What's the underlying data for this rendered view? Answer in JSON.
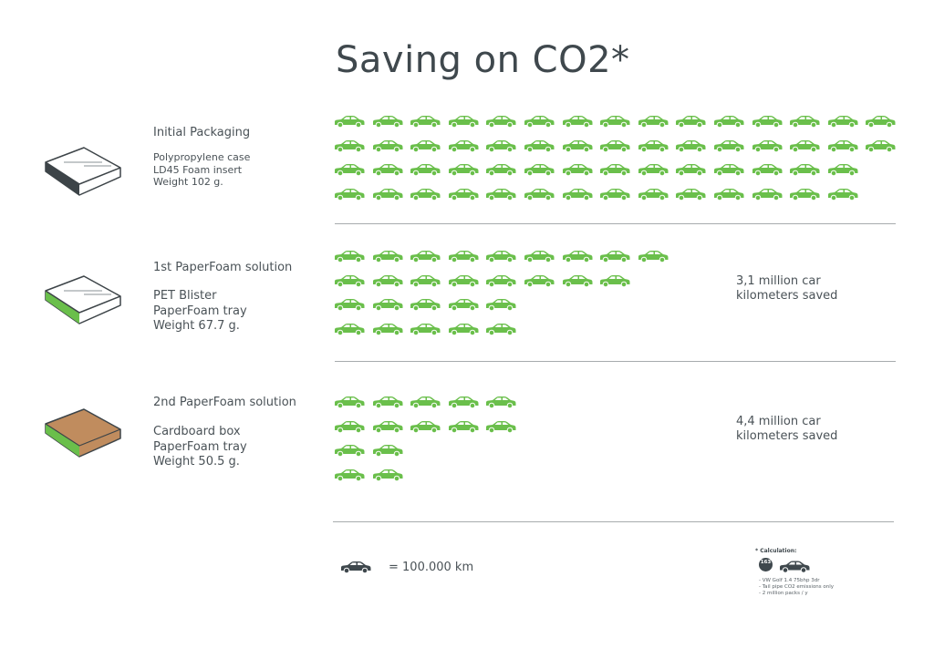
{
  "title": "Saving on CO2*",
  "colors": {
    "car_green": "#6abf4b",
    "car_dark": "#3f484d",
    "text": "#4a5257",
    "divider": "#a7abad",
    "cardboard": "#c08c5e",
    "box_dark_side": "#3d4448",
    "box_green_side": "#6abf4b"
  },
  "sections": [
    {
      "heading": "Initial Packaging",
      "desc": [
        "Polypropylene case",
        "LD45 Foam insert",
        "Weight 102 g."
      ],
      "icon": "box-dark-side-icon",
      "car_rows": [
        15,
        15,
        14,
        14
      ],
      "saved": []
    },
    {
      "heading": "1st PaperFoam solution",
      "desc": [
        "PET Blister",
        "PaperFoam tray",
        "Weight 67.7 g."
      ],
      "icon": "box-green-side-icon",
      "car_rows": [
        9,
        8,
        5,
        5
      ],
      "saved": [
        "3,1 million car",
        "kilometers saved"
      ]
    },
    {
      "heading": "2nd PaperFoam solution",
      "desc": [
        "Cardboard box",
        "PaperFoam tray",
        "Weight 50.5 g."
      ],
      "icon": "cardboard-box-icon",
      "car_rows": [
        5,
        5,
        2,
        2
      ],
      "saved": [
        "4,4 million car",
        "kilometers saved"
      ]
    }
  ],
  "legend": {
    "icon": "car-icon",
    "label": "= 100.000 km"
  },
  "calculation": {
    "title": "* Calculation:",
    "badge_value": "163",
    "badge_unit": "g/km",
    "notes": [
      "- VW Golf 1.4  75bhp 3dr",
      "- Tail pipe CO2 emissions only",
      "- 2 million packs / y"
    ]
  },
  "chart_data": {
    "type": "table",
    "title": "Saving on CO2*",
    "unit": "1 car icon = 100.000 km",
    "categories": [
      "Initial Packaging",
      "1st PaperFoam solution",
      "2nd PaperFoam solution"
    ],
    "series": [
      {
        "name": "Car icons (x100.000 km)",
        "values": [
          58,
          27,
          14
        ]
      },
      {
        "name": "Icons per row",
        "values": [
          [
            15,
            15,
            14,
            14
          ],
          [
            9,
            8,
            5,
            5
          ],
          [
            5,
            5,
            2,
            2
          ]
        ]
      },
      {
        "name": "Packaging weight (g)",
        "values": [
          102,
          67.7,
          50.5
        ]
      }
    ],
    "annotations": [
      "3,1 million car kilometers saved",
      "4,4 million car kilometers saved"
    ],
    "footnote": [
      "VW Golf 1.4 75bhp 3dr",
      "Tail pipe CO2 emissions only",
      "2 million packs / y",
      "163 g/km"
    ]
  }
}
